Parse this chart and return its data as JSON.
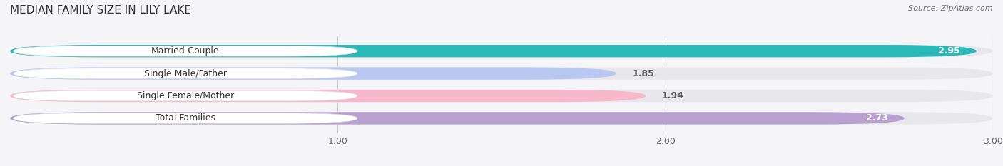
{
  "title": "MEDIAN FAMILY SIZE IN LILY LAKE",
  "source": "Source: ZipAtlas.com",
  "categories": [
    "Married-Couple",
    "Single Male/Father",
    "Single Female/Mother",
    "Total Families"
  ],
  "values": [
    2.95,
    1.85,
    1.94,
    2.73
  ],
  "bar_colors": [
    "#2ab8b8",
    "#b8c8f0",
    "#f8b8cc",
    "#b8a0d0"
  ],
  "bar_bg_color": "#e8e8ec",
  "x_min": 0.0,
  "x_max": 3.0,
  "x_ticks": [
    1.0,
    2.0,
    3.0
  ],
  "x_tick_labels": [
    "1.00",
    "2.00",
    "3.00"
  ],
  "label_color_inside": "#ffffff",
  "label_color_outside": "#555555",
  "title_fontsize": 11,
  "source_fontsize": 8,
  "bar_label_fontsize": 9,
  "tick_fontsize": 9,
  "category_fontsize": 9,
  "background_color": "#f5f5f8",
  "bar_height": 0.55,
  "value_inside_threshold": 2.5
}
